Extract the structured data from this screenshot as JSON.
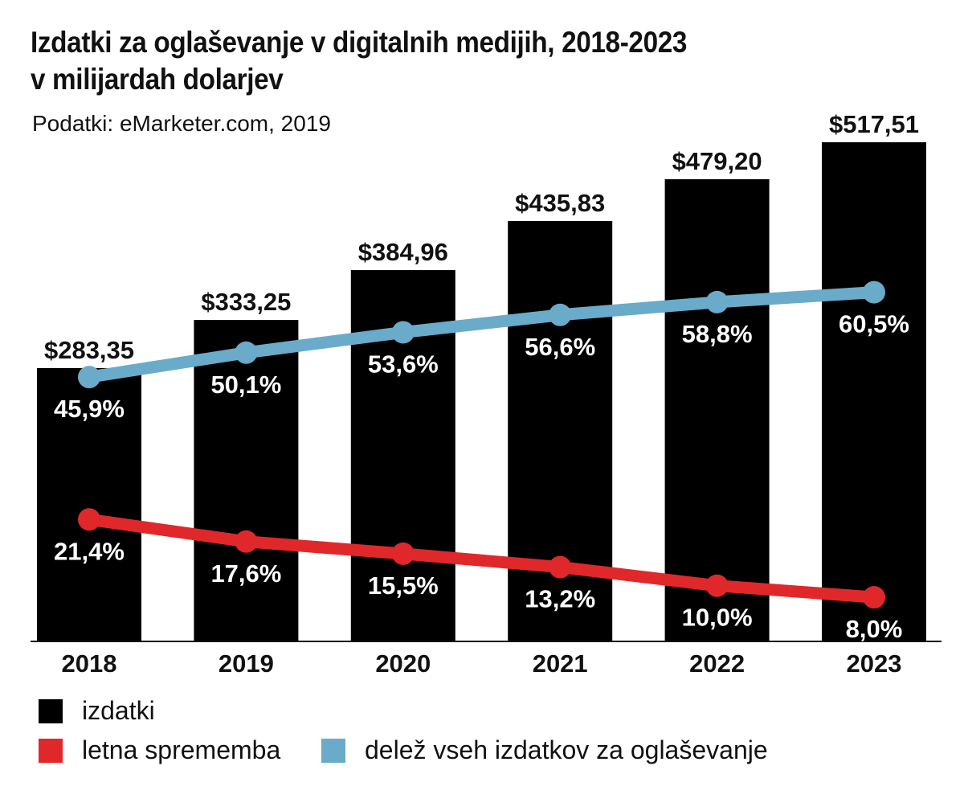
{
  "chart_data": {
    "type": "bar",
    "title": [
      "Izdatki za oglaševanje v digitalnih medijih, 2018-2023",
      "v milijardah dolarjev"
    ],
    "subtitle": "Podatki: eMarketer.com, 2019",
    "categories": [
      "2018",
      "2019",
      "2020",
      "2021",
      "2022",
      "2023"
    ],
    "bars": {
      "name": "izdatki",
      "color": "#000000",
      "values": [
        283.35,
        333.25,
        384.96,
        435.83,
        479.2,
        517.51
      ],
      "labels": [
        "$283,35",
        "$333,25",
        "$384,96",
        "$435,83",
        "$479,20",
        "$517,51"
      ]
    },
    "lines": [
      {
        "name": "delež vseh izdatkov za oglaševanje",
        "color": "#6aabc9",
        "values": [
          45.9,
          50.1,
          53.6,
          56.6,
          58.8,
          60.5
        ],
        "labels": [
          "45,9%",
          "50,1%",
          "53,6%",
          "56,6%",
          "58,8%",
          "60,5%"
        ]
      },
      {
        "name": "letna sprememba",
        "color": "#e0282a",
        "values": [
          21.4,
          17.6,
          15.5,
          13.2,
          10.0,
          8.0
        ],
        "labels": [
          "21,4%",
          "17,6%",
          "15,5%",
          "13,2%",
          "10,0%",
          "8,0%"
        ]
      }
    ],
    "legend": [
      {
        "label": "izdatki",
        "color": "#000000"
      },
      {
        "label": "letna sprememba",
        "color": "#e0282a"
      },
      {
        "label": "delež vseh izdatkov za oglaševanje",
        "color": "#6aabc9"
      }
    ],
    "ylim": [
      0,
      550
    ],
    "grid": false,
    "legend_position": "bottom-left"
  }
}
